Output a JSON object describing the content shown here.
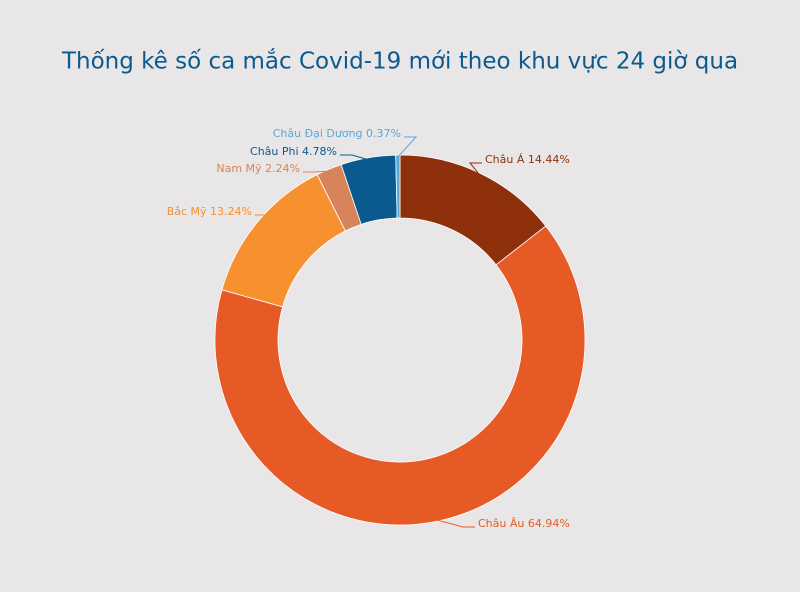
{
  "chart_data": {
    "type": "donut",
    "title": "Thống kê số ca mắc Covid-19 mới theo khu vực 24 giờ qua",
    "title_color": "#0b5a8f",
    "categories": [
      "Châu Á",
      "Châu Âu",
      "Bắc Mỹ",
      "Nam Mỹ",
      "Châu Phi",
      "Châu Đại Dương"
    ],
    "values": [
      14.44,
      64.94,
      13.24,
      2.24,
      4.78,
      0.37
    ],
    "value_labels": [
      "14.44%",
      "64.94%",
      "13.24%",
      "2.24%",
      "4.78%",
      "0.37%"
    ],
    "colors": [
      "#8f300c",
      "#e55a25",
      "#f7902f",
      "#d7845a",
      "#0b5a8f",
      "#5aa8d8"
    ]
  }
}
